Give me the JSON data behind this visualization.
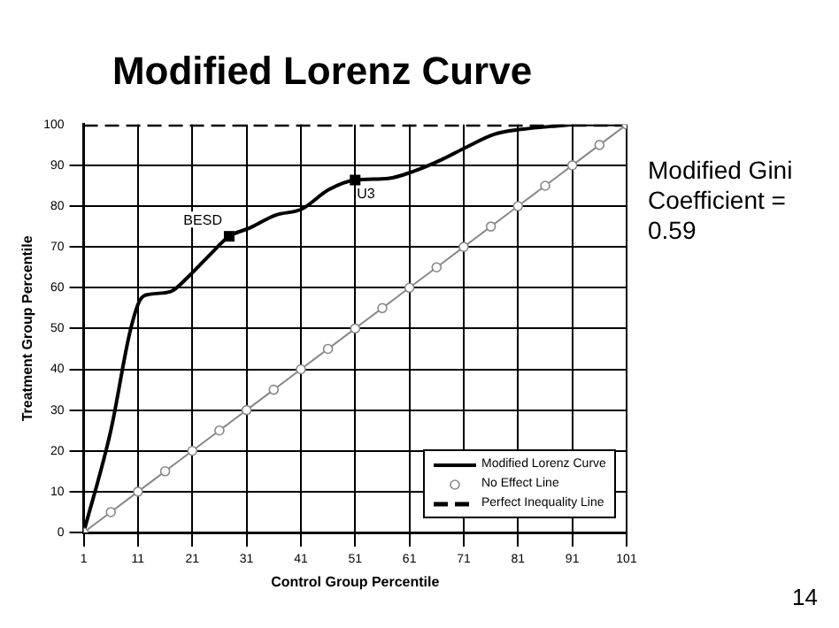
{
  "chart_data": {
    "type": "line",
    "title": "Modified Lorenz Curve",
    "xlabel": "Control Group Percentile",
    "ylabel": "Treatment Group Percentile",
    "xlim": [
      1,
      101
    ],
    "xticks": [
      1,
      11,
      21,
      31,
      41,
      51,
      61,
      71,
      81,
      91,
      101
    ],
    "ylim": [
      0,
      100
    ],
    "yticks": [
      0,
      10,
      20,
      30,
      40,
      50,
      60,
      70,
      80,
      90,
      100
    ],
    "grid": true,
    "legend": "bottom right",
    "series": [
      {
        "name": "Modified Lorenz Curve",
        "color": "#000000",
        "marker": "none",
        "line_style": "solid",
        "x": [
          1,
          6,
          9.5,
          11.4,
          13.2,
          16.9,
          20.5,
          24.2,
          27.8,
          31.5,
          36.4,
          41.2,
          46.1,
          51,
          57.1,
          61.9,
          66.8,
          71.7,
          76.6,
          81.5,
          87.6,
          92.5,
          101
        ],
        "values": [
          0,
          25,
          49,
          57,
          58.4,
          59,
          63,
          68,
          72.6,
          74.6,
          77.8,
          79.3,
          84,
          86.4,
          86.8,
          88.6,
          91.3,
          94.6,
          97.6,
          98.8,
          99.6,
          100,
          100
        ]
      },
      {
        "name": "No Effect Line",
        "color": "#888888",
        "marker": "circle",
        "line_style": "solid",
        "x": [
          1,
          6,
          11,
          16,
          21,
          26,
          31,
          36,
          41,
          46,
          51,
          56,
          61,
          66,
          71,
          76,
          81,
          86,
          91,
          96,
          101
        ],
        "values": [
          0,
          5,
          10,
          15,
          20,
          25,
          30,
          35,
          40,
          45,
          50,
          55,
          60,
          65,
          70,
          75,
          80,
          85,
          90,
          95,
          100
        ]
      },
      {
        "name": "Perfect Inequality Line",
        "color": "#000000",
        "marker": "none",
        "line_style": "dashed",
        "x": [
          1,
          101
        ],
        "values": [
          100,
          100
        ]
      }
    ],
    "annotations": [
      {
        "text": "BESD",
        "x": 27.8,
        "y": 72.6
      },
      {
        "text": "U3",
        "x": 51,
        "y": 86.4
      },
      "Modified Gini Coefficient = 0.59",
      "14"
    ]
  }
}
